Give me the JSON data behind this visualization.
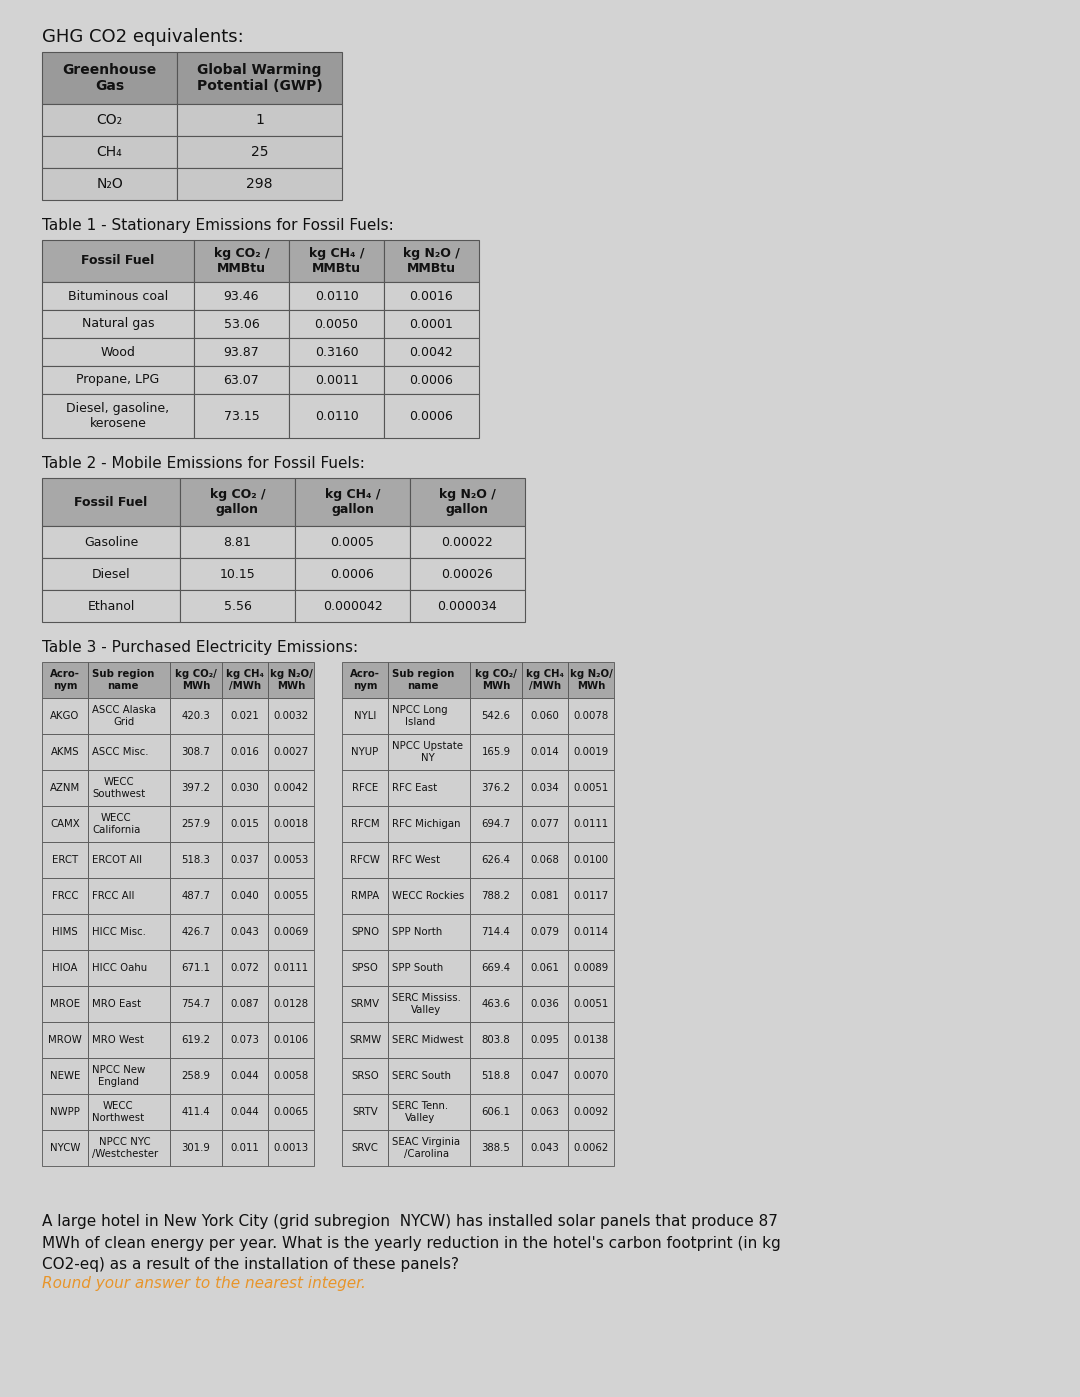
{
  "title_main": "GHG CO2 equivalents:",
  "bg_color": "#d3d3d3",
  "dark": "#111111",
  "hdr_bg": "#a0a0a0",
  "row_bg": "#cccccc",
  "border": "#555555",
  "gwp_header": [
    "Greenhouse\nGas",
    "Global Warming\nPotential (GWP)"
  ],
  "gwp_rows": [
    [
      "CO₂",
      "1"
    ],
    [
      "CH₄",
      "25"
    ],
    [
      "N₂O",
      "298"
    ]
  ],
  "table1_title": "Table 1 - Stationary Emissions for Fossil Fuels:",
  "table1_headers": [
    "Fossil Fuel",
    "kg CO₂ /\nMMBtu",
    "kg CH₄ /\nMMBtu",
    "kg N₂O /\nMMBtu"
  ],
  "table1_rows": [
    [
      "Bituminous coal",
      "93.46",
      "0.0110",
      "0.0016"
    ],
    [
      "Natural gas",
      "53.06",
      "0.0050",
      "0.0001"
    ],
    [
      "Wood",
      "93.87",
      "0.3160",
      "0.0042"
    ],
    [
      "Propane, LPG",
      "63.07",
      "0.0011",
      "0.0006"
    ],
    [
      "Diesel, gasoline,\nkerosene",
      "73.15",
      "0.0110",
      "0.0006"
    ]
  ],
  "table2_title": "Table 2 - Mobile Emissions for Fossil Fuels:",
  "table2_headers": [
    "Fossil Fuel",
    "kg CO₂ /\ngallon",
    "kg CH₄ /\ngallon",
    "kg N₂O /\ngallon"
  ],
  "table2_rows": [
    [
      "Gasoline",
      "8.81",
      "0.0005",
      "0.00022"
    ],
    [
      "Diesel",
      "10.15",
      "0.0006",
      "0.00026"
    ],
    [
      "Ethanol",
      "5.56",
      "0.000042",
      "0.000034"
    ]
  ],
  "table3_title": "Table 3 - Purchased Electricity Emissions:",
  "table3_headers": [
    "Acro-\nnym",
    "Sub region\nname",
    "kg CO₂/\nMWh",
    "kg CH₄\n/MWh",
    "kg N₂O/\nMWh"
  ],
  "table3_left": [
    [
      "AKGO",
      "ASCC Alaska\nGrid",
      "420.3",
      "0.021",
      "0.0032"
    ],
    [
      "AKMS",
      "ASCC Misc.",
      "308.7",
      "0.016",
      "0.0027"
    ],
    [
      "AZNM",
      "WECC\nSouthwest",
      "397.2",
      "0.030",
      "0.0042"
    ],
    [
      "CAMX",
      "WECC\nCalifornia",
      "257.9",
      "0.015",
      "0.0018"
    ],
    [
      "ERCT",
      "ERCOT All",
      "518.3",
      "0.037",
      "0.0053"
    ],
    [
      "FRCC",
      "FRCC All",
      "487.7",
      "0.040",
      "0.0055"
    ],
    [
      "HIMS",
      "HICC Misc.",
      "426.7",
      "0.043",
      "0.0069"
    ],
    [
      "HIOA",
      "HICC Oahu",
      "671.1",
      "0.072",
      "0.0111"
    ],
    [
      "MROE",
      "MRO East",
      "754.7",
      "0.087",
      "0.0128"
    ],
    [
      "MROW",
      "MRO West",
      "619.2",
      "0.073",
      "0.0106"
    ],
    [
      "NEWE",
      "NPCC New\nEngland",
      "258.9",
      "0.044",
      "0.0058"
    ],
    [
      "NWPP",
      "WECC\nNorthwest",
      "411.4",
      "0.044",
      "0.0065"
    ],
    [
      "NYCW",
      "NPCC NYC\n/Westchester",
      "301.9",
      "0.011",
      "0.0013"
    ]
  ],
  "table3_right": [
    [
      "NYLI",
      "NPCC Long\nIsland",
      "542.6",
      "0.060",
      "0.0078"
    ],
    [
      "NYUP",
      "NPCC Upstate\nNY",
      "165.9",
      "0.014",
      "0.0019"
    ],
    [
      "RFCE",
      "RFC East",
      "376.2",
      "0.034",
      "0.0051"
    ],
    [
      "RFCM",
      "RFC Michigan",
      "694.7",
      "0.077",
      "0.0111"
    ],
    [
      "RFCW",
      "RFC West",
      "626.4",
      "0.068",
      "0.0100"
    ],
    [
      "RMPA",
      "WECC Rockies",
      "788.2",
      "0.081",
      "0.0117"
    ],
    [
      "SPNO",
      "SPP North",
      "714.4",
      "0.079",
      "0.0114"
    ],
    [
      "SPSO",
      "SPP South",
      "669.4",
      "0.061",
      "0.0089"
    ],
    [
      "SRMV",
      "SERC Mississ.\nValley",
      "463.6",
      "0.036",
      "0.0051"
    ],
    [
      "SRMW",
      "SERC Midwest",
      "803.8",
      "0.095",
      "0.0138"
    ],
    [
      "SRSO",
      "SERC South",
      "518.8",
      "0.047",
      "0.0070"
    ],
    [
      "SRTV",
      "SERC Tenn.\nValley",
      "606.1",
      "0.063",
      "0.0092"
    ],
    [
      "SRVC",
      "SEAC Virginia\n/Carolina",
      "388.5",
      "0.043",
      "0.0062"
    ]
  ],
  "footer_text": "A large hotel in New York City (grid subregion  NYCW) has installed solar panels that produce 87\nMWh of clean energy per year. What is the yearly reduction in the hotel's carbon footprint (in kg\nCO2-eq) as a result of the installation of these panels?",
  "footer_colored": "Round your answer to the nearest integer.",
  "footer_color": "#e8952a"
}
